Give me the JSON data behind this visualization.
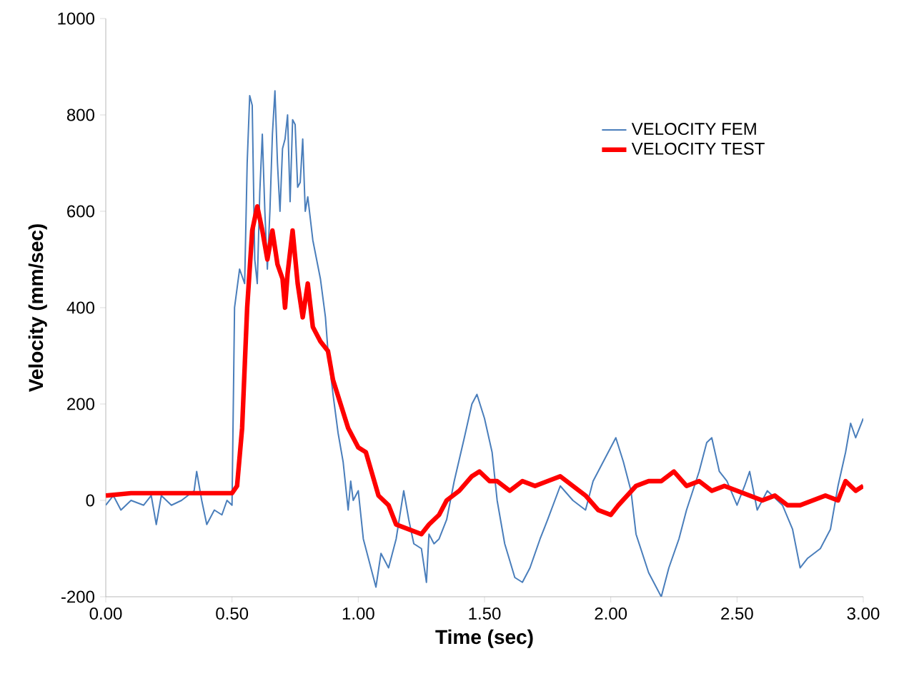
{
  "chart_data": {
    "type": "line",
    "xlabel": "Time (sec)",
    "ylabel": "Velocity (mm/sec)",
    "xlim": [
      0,
      3
    ],
    "ylim": [
      -200,
      1000
    ],
    "xticks": [
      {
        "value": 0,
        "label": "0.00"
      },
      {
        "value": 0.5,
        "label": "0.50"
      },
      {
        "value": 1,
        "label": "1.00"
      },
      {
        "value": 1.5,
        "label": "1.50"
      },
      {
        "value": 2,
        "label": "2.00"
      },
      {
        "value": 2.5,
        "label": "2.50"
      },
      {
        "value": 3,
        "label": "3.00"
      }
    ],
    "yticks": [
      -200,
      0,
      200,
      400,
      600,
      800,
      1000
    ],
    "grid": false,
    "legend": "top right",
    "marker": "none",
    "line_style": "solid",
    "series": [
      {
        "name": "VELOCITY FEM",
        "color": "#4a7ebb",
        "x": [
          0,
          0.03,
          0.06,
          0.1,
          0.15,
          0.18,
          0.2,
          0.22,
          0.26,
          0.3,
          0.35,
          0.36,
          0.38,
          0.4,
          0.43,
          0.46,
          0.48,
          0.5,
          0.51,
          0.53,
          0.55,
          0.56,
          0.57,
          0.58,
          0.59,
          0.6,
          0.61,
          0.62,
          0.63,
          0.64,
          0.65,
          0.66,
          0.67,
          0.68,
          0.69,
          0.7,
          0.71,
          0.72,
          0.73,
          0.74,
          0.75,
          0.76,
          0.77,
          0.78,
          0.79,
          0.8,
          0.82,
          0.85,
          0.87,
          0.88,
          0.9,
          0.92,
          0.94,
          0.96,
          0.97,
          0.98,
          1.0,
          1.02,
          1.05,
          1.07,
          1.09,
          1.12,
          1.15,
          1.18,
          1.2,
          1.22,
          1.25,
          1.27,
          1.28,
          1.3,
          1.32,
          1.35,
          1.38,
          1.42,
          1.45,
          1.47,
          1.5,
          1.53,
          1.55,
          1.58,
          1.62,
          1.65,
          1.68,
          1.72,
          1.75,
          1.8,
          1.85,
          1.9,
          1.93,
          1.96,
          2.0,
          2.02,
          2.05,
          2.08,
          2.1,
          2.15,
          2.2,
          2.23,
          2.27,
          2.3,
          2.35,
          2.38,
          2.4,
          2.43,
          2.46,
          2.5,
          2.53,
          2.55,
          2.58,
          2.62,
          2.68,
          2.72,
          2.75,
          2.78,
          2.83,
          2.87,
          2.9,
          2.93,
          2.95,
          2.97,
          3.0
        ],
        "values": [
          -10,
          10,
          -20,
          0,
          -10,
          10,
          -50,
          10,
          -10,
          0,
          20,
          60,
          0,
          -50,
          -20,
          -30,
          0,
          -10,
          400,
          480,
          450,
          700,
          840,
          820,
          500,
          450,
          640,
          760,
          600,
          480,
          600,
          760,
          850,
          700,
          600,
          730,
          750,
          800,
          620,
          790,
          780,
          650,
          660,
          750,
          600,
          630,
          540,
          460,
          380,
          310,
          220,
          140,
          80,
          -20,
          40,
          0,
          20,
          -80,
          -140,
          -180,
          -110,
          -140,
          -80,
          20,
          -40,
          -90,
          -100,
          -170,
          -70,
          -90,
          -80,
          -40,
          40,
          130,
          200,
          220,
          170,
          100,
          0,
          -90,
          -160,
          -170,
          -140,
          -80,
          -40,
          30,
          0,
          -20,
          40,
          70,
          110,
          130,
          80,
          20,
          -70,
          -150,
          -200,
          -140,
          -80,
          -20,
          60,
          120,
          130,
          60,
          40,
          -10,
          30,
          60,
          -20,
          20,
          -10,
          -60,
          -140,
          -120,
          -100,
          -60,
          30,
          100,
          160,
          130,
          170
        ]
      },
      {
        "name": "VELOCITY TEST",
        "color": "#ff0000",
        "x": [
          0,
          0.1,
          0.2,
          0.3,
          0.4,
          0.5,
          0.52,
          0.54,
          0.56,
          0.58,
          0.6,
          0.62,
          0.64,
          0.66,
          0.68,
          0.7,
          0.71,
          0.72,
          0.74,
          0.76,
          0.78,
          0.8,
          0.82,
          0.85,
          0.88,
          0.9,
          0.93,
          0.96,
          1.0,
          1.03,
          1.08,
          1.12,
          1.15,
          1.2,
          1.25,
          1.28,
          1.32,
          1.35,
          1.4,
          1.45,
          1.48,
          1.52,
          1.55,
          1.6,
          1.65,
          1.7,
          1.75,
          1.8,
          1.85,
          1.9,
          1.95,
          2.0,
          2.03,
          2.1,
          2.15,
          2.2,
          2.25,
          2.3,
          2.35,
          2.4,
          2.45,
          2.5,
          2.55,
          2.6,
          2.65,
          2.7,
          2.75,
          2.8,
          2.85,
          2.9,
          2.93,
          2.97,
          3.0
        ],
        "values": [
          10,
          15,
          15,
          15,
          15,
          15,
          30,
          150,
          400,
          560,
          610,
          560,
          500,
          560,
          490,
          460,
          400,
          470,
          560,
          450,
          380,
          450,
          360,
          330,
          310,
          250,
          200,
          150,
          110,
          100,
          10,
          -10,
          -50,
          -60,
          -70,
          -50,
          -30,
          0,
          20,
          50,
          60,
          40,
          40,
          20,
          40,
          30,
          40,
          50,
          30,
          10,
          -20,
          -30,
          -10,
          30,
          40,
          40,
          60,
          30,
          40,
          20,
          30,
          20,
          10,
          0,
          10,
          -10,
          -10,
          0,
          10,
          0,
          40,
          20,
          30
        ]
      }
    ]
  }
}
